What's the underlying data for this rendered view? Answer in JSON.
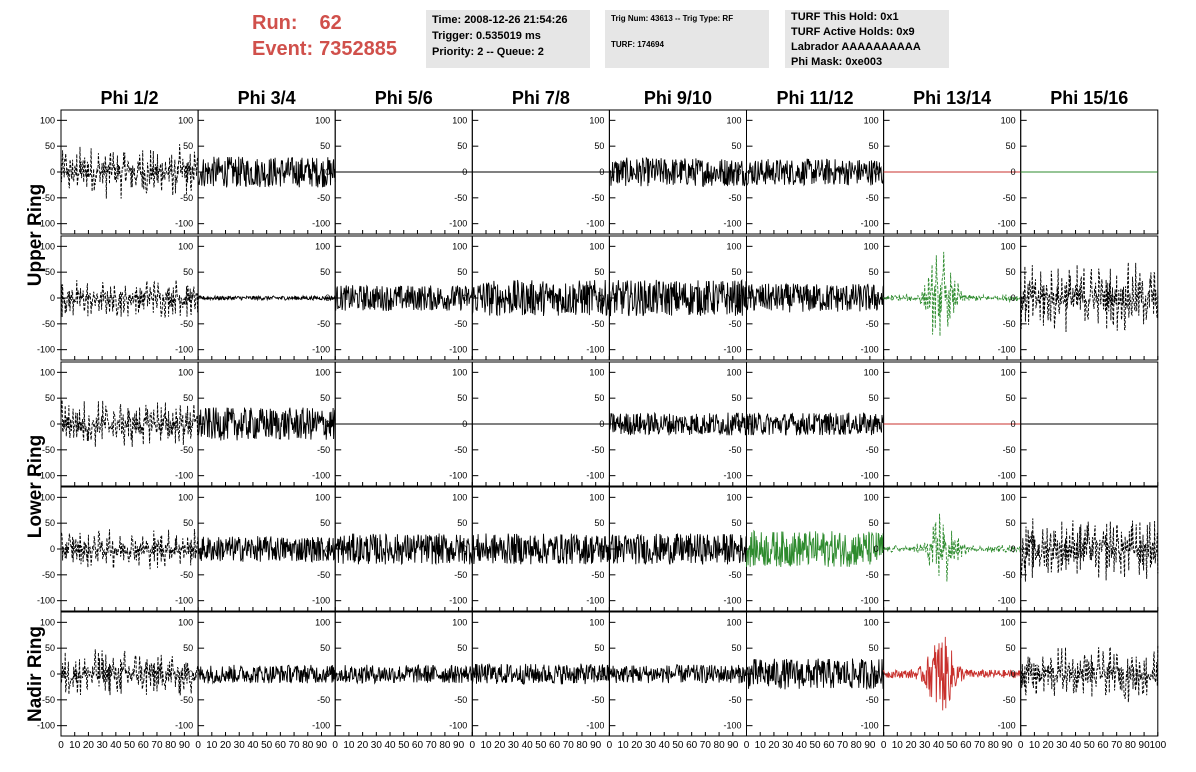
{
  "header": {
    "run_label": "Run:",
    "run_value": "62",
    "event_label": "Event:",
    "event_value": "7352885",
    "box1": [
      "Time: 2008-12-26 21:54:26",
      "Trigger: 0.535019 ms",
      "Priority: 2 -- Queue: 2"
    ],
    "box2_line1": "Trig Num: 43613 -- Trig Type: RF",
    "box2_line2": "TURF: 174694",
    "box3": [
      "TURF This Hold: 0x1",
      "TURF Active Holds: 0x9",
      "Labrador AAAAAAAAAA",
      "Phi Mask: 0xe003"
    ]
  },
  "colors": {
    "run_text": "#d0504b",
    "box_bg": "#e6e6e6",
    "trace_black": "#000000",
    "trace_green": "#2e8b2e",
    "trace_red": "#c8302c"
  },
  "chart_data": {
    "type": "line",
    "column_headers": [
      "Phi 1/2",
      "Phi 3/4",
      "Phi 5/6",
      "Phi 7/8",
      "Phi 9/10",
      "Phi 11/12",
      "Phi 13/14",
      "Phi 15/16"
    ],
    "row_labels": [
      {
        "text": "Upper Ring",
        "rows": [
          0,
          1
        ]
      },
      {
        "text": "Lower Ring",
        "rows": [
          2,
          3
        ]
      },
      {
        "text": "Nadir Ring",
        "rows": [
          4
        ]
      }
    ],
    "xlim": [
      0,
      100
    ],
    "ylim": [
      -120,
      120
    ],
    "y_ticks": [
      -100,
      -50,
      0,
      50,
      100
    ],
    "x_ticks": [
      0,
      10,
      20,
      30,
      40,
      50,
      60,
      70,
      80,
      90,
      100
    ],
    "x_tick_labels": [
      "0",
      "10",
      "20",
      "30",
      "40",
      "50",
      "60",
      "70",
      "80",
      "90",
      "100"
    ],
    "last_column_x_ticks": [
      "0",
      "10",
      "20",
      "30",
      "40",
      "50",
      "60",
      "70",
      "80",
      "90",
      "100"
    ],
    "panels": [
      [
        {
          "color": "black",
          "style": "dashed",
          "amp": 55,
          "pulse": false
        },
        {
          "color": "black",
          "style": "solid",
          "amp": 30,
          "pulse": false
        },
        {
          "color": "black",
          "style": "flat",
          "amp": 0,
          "pulse": false
        },
        {
          "color": "black",
          "style": "flat",
          "amp": 0,
          "pulse": false
        },
        {
          "color": "black",
          "style": "solid",
          "amp": 28,
          "pulse": false
        },
        {
          "color": "black",
          "style": "solid",
          "amp": 26,
          "pulse": false
        },
        {
          "color": "red",
          "style": "flat",
          "amp": 0,
          "pulse": false
        },
        {
          "color": "green",
          "style": "flat",
          "amp": 0,
          "pulse": false
        }
      ],
      [
        {
          "color": "black",
          "style": "dashed",
          "amp": 40,
          "pulse": false
        },
        {
          "color": "black",
          "style": "solid",
          "amp": 4,
          "pulse": false
        },
        {
          "color": "black",
          "style": "solid",
          "amp": 25,
          "pulse": false
        },
        {
          "color": "black",
          "style": "solid",
          "amp": 35,
          "pulse": false
        },
        {
          "color": "black",
          "style": "solid",
          "amp": 35,
          "pulse": false
        },
        {
          "color": "black",
          "style": "solid",
          "amp": 28,
          "pulse": false
        },
        {
          "color": "green",
          "style": "dashed",
          "amp": 35,
          "pulse": true
        },
        {
          "color": "black",
          "style": "dashed",
          "amp": 70,
          "pulse": false
        }
      ],
      [
        {
          "color": "black",
          "style": "dashed",
          "amp": 50,
          "pulse": false
        },
        {
          "color": "black",
          "style": "solid",
          "amp": 32,
          "pulse": false
        },
        {
          "color": "black",
          "style": "flat",
          "amp": 0,
          "pulse": false
        },
        {
          "color": "black",
          "style": "flat",
          "amp": 0,
          "pulse": false
        },
        {
          "color": "black",
          "style": "solid",
          "amp": 22,
          "pulse": false
        },
        {
          "color": "black",
          "style": "solid",
          "amp": 22,
          "pulse": false
        },
        {
          "color": "red",
          "style": "flat",
          "amp": 0,
          "pulse": false
        },
        {
          "color": "black",
          "style": "flat",
          "amp": 0,
          "pulse": false
        }
      ],
      [
        {
          "color": "black",
          "style": "dashed",
          "amp": 40,
          "pulse": false
        },
        {
          "color": "black",
          "style": "solid",
          "amp": 25,
          "pulse": false
        },
        {
          "color": "black",
          "style": "solid",
          "amp": 30,
          "pulse": false
        },
        {
          "color": "black",
          "style": "solid",
          "amp": 30,
          "pulse": false
        },
        {
          "color": "black",
          "style": "solid",
          "amp": 30,
          "pulse": false
        },
        {
          "color": "green",
          "style": "solid",
          "amp": 35,
          "pulse": false
        },
        {
          "color": "green",
          "style": "dashed",
          "amp": 30,
          "pulse": true
        },
        {
          "color": "black",
          "style": "dashed",
          "amp": 65,
          "pulse": false
        }
      ],
      [
        {
          "color": "black",
          "style": "dashed",
          "amp": 50,
          "pulse": false
        },
        {
          "color": "black",
          "style": "solid",
          "amp": 18,
          "pulse": false
        },
        {
          "color": "black",
          "style": "solid",
          "amp": 18,
          "pulse": false
        },
        {
          "color": "black",
          "style": "solid",
          "amp": 20,
          "pulse": false
        },
        {
          "color": "black",
          "style": "solid",
          "amp": 18,
          "pulse": false
        },
        {
          "color": "black",
          "style": "solid",
          "amp": 30,
          "pulse": false
        },
        {
          "color": "red",
          "style": "solid",
          "amp": 25,
          "pulse": true
        },
        {
          "color": "black",
          "style": "dashed",
          "amp": 55,
          "pulse": false
        }
      ]
    ]
  }
}
